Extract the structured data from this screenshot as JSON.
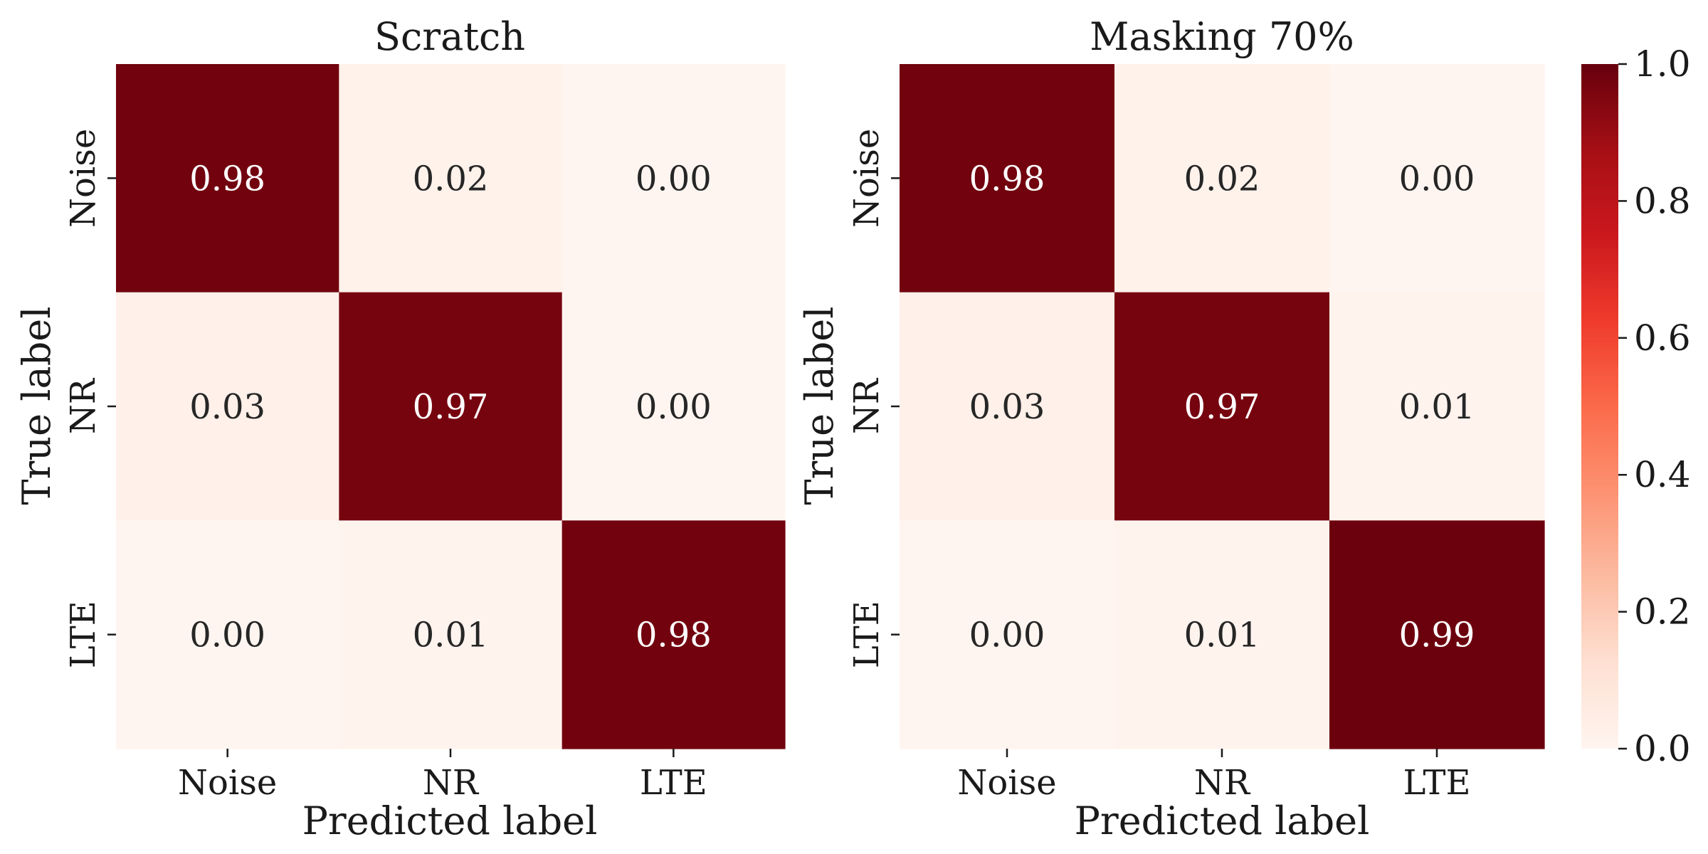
{
  "chart_data": [
    {
      "type": "heatmap",
      "title": "Scratch",
      "xlabel": "Predicted label",
      "ylabel": "True label",
      "x_categories": [
        "Noise",
        "NR",
        "LTE"
      ],
      "y_categories": [
        "Noise",
        "NR",
        "LTE"
      ],
      "values": [
        [
          0.98,
          0.02,
          0.0
        ],
        [
          0.03,
          0.97,
          0.0
        ],
        [
          0.0,
          0.01,
          0.98
        ]
      ]
    },
    {
      "type": "heatmap",
      "title": "Masking 70%",
      "xlabel": "Predicted label",
      "ylabel": "True label",
      "x_categories": [
        "Noise",
        "NR",
        "LTE"
      ],
      "y_categories": [
        "Noise",
        "NR",
        "LTE"
      ],
      "values": [
        [
          0.98,
          0.02,
          0.0
        ],
        [
          0.03,
          0.97,
          0.01
        ],
        [
          0.0,
          0.01,
          0.99
        ]
      ]
    }
  ],
  "colorbar": {
    "colormap": "Reds",
    "range": [
      0.0,
      1.0
    ],
    "ticks": [
      "0.0",
      "0.2",
      "0.4",
      "0.6",
      "0.8",
      "1.0"
    ]
  },
  "colors": {
    "low": "#fff5f0",
    "high": "#67000d",
    "text_dark": "#262626",
    "text_light": "#ffffff"
  }
}
